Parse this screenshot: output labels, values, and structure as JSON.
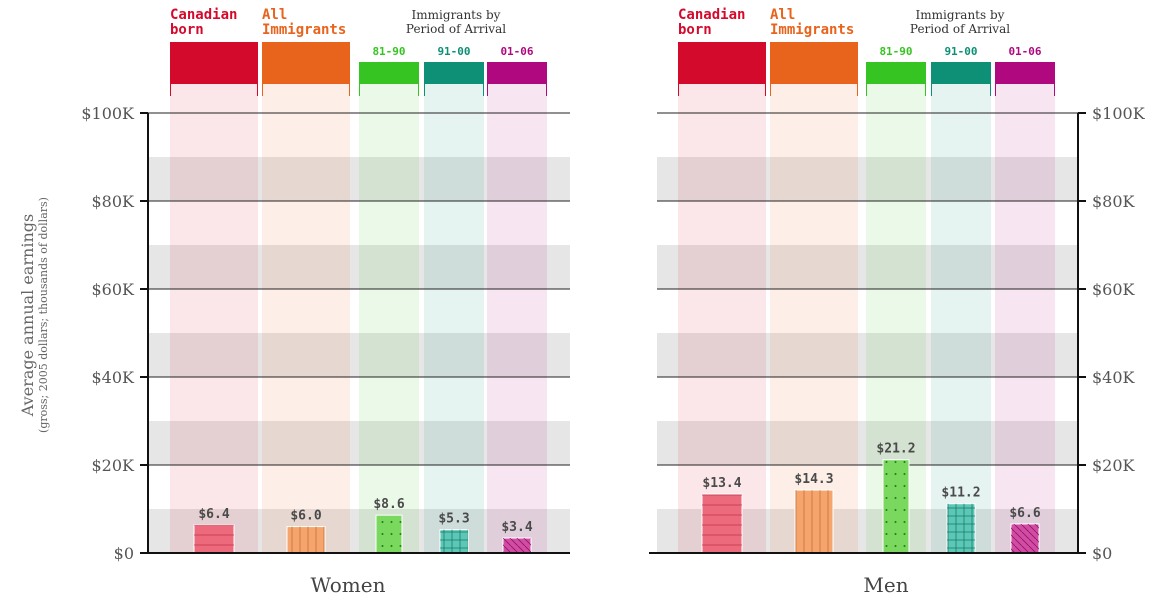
{
  "y_axis": {
    "label": "Average annual earnings",
    "sublabel": "(gross; 2005 dollars; thousands of dollars)"
  },
  "headers": {
    "canadian_born": "Canadian\nborn",
    "all_immigrants": "All\nImmigrants",
    "period_group": "Immigrants by\nPeriod of Arrival",
    "p1": "81-90",
    "p2": "91-00",
    "p3": "01-06"
  },
  "colors": {
    "canadian_born": "#d40a2d",
    "all_immigrants": "#e8631c",
    "p1": "#36c422",
    "p2": "#0d9075",
    "p3": "#b0097f",
    "bar_canadian_born": "#ec6a7c",
    "bar_all_immigrants": "#f4a46c",
    "bar_p1": "#7ad85e",
    "bar_p2": "#5cc7b6",
    "bar_p3": "#d24ca3"
  },
  "chart_data": {
    "type": "bar",
    "categories": [
      "Canadian born",
      "All Immigrants",
      "81-90",
      "91-00",
      "01-06"
    ],
    "ylim": [
      0,
      100
    ],
    "yticks": [
      "$0",
      "$20K",
      "$40K",
      "$60K",
      "$80K",
      "$100K"
    ],
    "ytick_values": [
      0,
      20,
      40,
      60,
      80,
      100
    ],
    "panels": [
      {
        "title": "Women",
        "values": [
          6.4,
          6.0,
          8.6,
          5.3,
          3.4
        ],
        "labels": [
          "$6.4",
          "$6.0",
          "$8.6",
          "$5.3",
          "$3.4"
        ]
      },
      {
        "title": "Men",
        "values": [
          13.4,
          14.3,
          21.2,
          11.2,
          6.6
        ],
        "labels": [
          "$13.4",
          "$14.3",
          "$21.2",
          "$11.2",
          "$6.6"
        ]
      }
    ]
  }
}
